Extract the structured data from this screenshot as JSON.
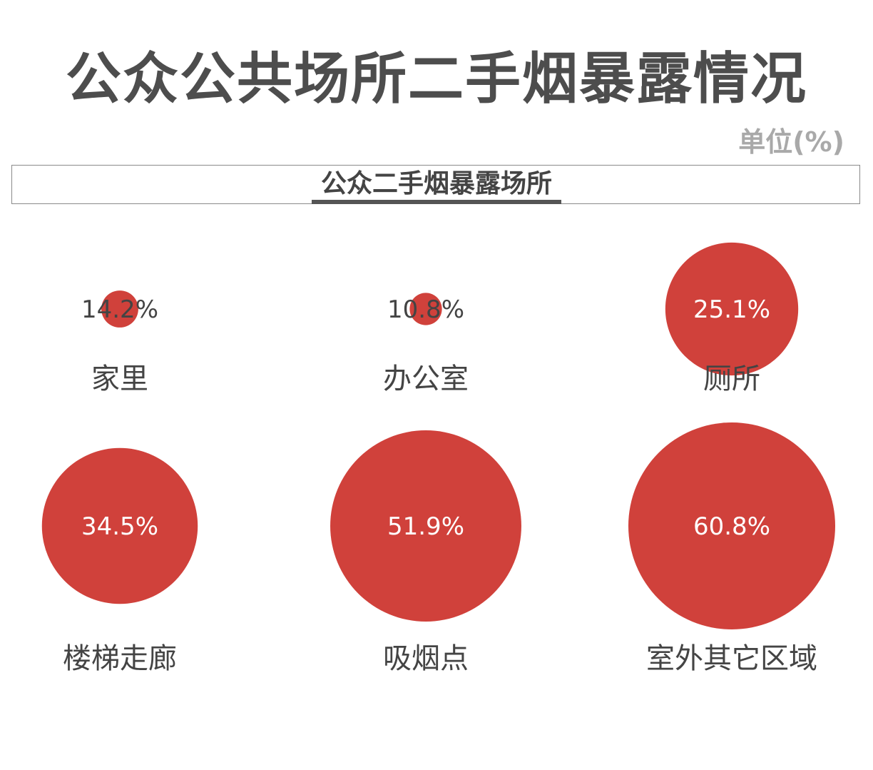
{
  "header": {
    "title": "公众公共场所二手烟暴露情况",
    "unit": "单位(%)"
  },
  "tabs": [
    {
      "label": "公众二手烟暴露场所",
      "active": true
    }
  ],
  "colors": {
    "bubble": "#d0413b",
    "value_text_inside": "#ffffff",
    "value_text_overflow": "#444444"
  },
  "chart_data": {
    "type": "bubble",
    "categories": [
      "家里",
      "办公室",
      "厕所",
      "楼梯走廊",
      "吸烟点",
      "室外其它区域"
    ],
    "values": [
      14.2,
      10.8,
      25.1,
      34.5,
      51.9,
      60.8
    ],
    "value_labels": [
      "14.2%",
      "10.8%",
      "25.1%",
      "34.5%",
      "51.9%",
      "60.8%"
    ],
    "layout": "3 columns x 2 rows"
  }
}
